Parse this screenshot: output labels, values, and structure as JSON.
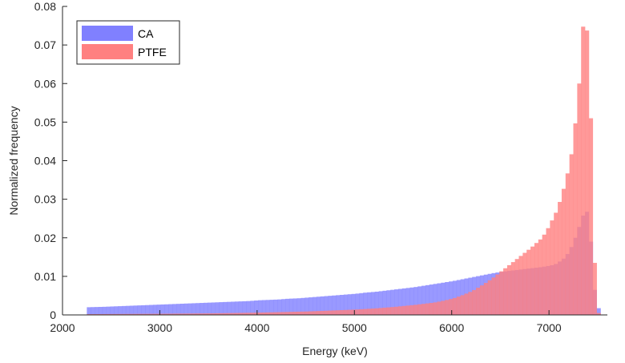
{
  "chart_data": {
    "type": "bar",
    "subtype": "overlaid-histogram",
    "title": "",
    "xlabel": "Energy (keV)",
    "ylabel": "Normalized frequency",
    "xlim": [
      2000,
      7600
    ],
    "ylim": [
      0,
      0.08
    ],
    "xticks": [
      2000,
      3000,
      4000,
      5000,
      6000,
      7000
    ],
    "xtick_labels": [
      "2000",
      "3000",
      "4000",
      "5000",
      "6000",
      "7000"
    ],
    "yticks": [
      0,
      0.01,
      0.02,
      0.03,
      0.04,
      0.05,
      0.06,
      0.07,
      0.08
    ],
    "ytick_labels": [
      "0",
      "0.01",
      "0.02",
      "0.03",
      "0.04",
      "0.05",
      "0.06",
      "0.07",
      "0.08"
    ],
    "grid": false,
    "legend_position": "top-left",
    "bin_width": 40,
    "series": [
      {
        "name": "CA",
        "color": "#8080ff",
        "opacity": 0.8,
        "bins": [
          [
            2250,
            0.002
          ],
          [
            2400,
            0.0021
          ],
          [
            2500,
            0.0022
          ],
          [
            2600,
            0.0023
          ],
          [
            2700,
            0.0024
          ],
          [
            2800,
            0.0025
          ],
          [
            2900,
            0.0026
          ],
          [
            3000,
            0.0027
          ],
          [
            3100,
            0.0028
          ],
          [
            3200,
            0.0029
          ],
          [
            3300,
            0.003
          ],
          [
            3400,
            0.0031
          ],
          [
            3500,
            0.0032
          ],
          [
            3600,
            0.0033
          ],
          [
            3700,
            0.0034
          ],
          [
            3800,
            0.0035
          ],
          [
            3900,
            0.0036
          ],
          [
            4000,
            0.0038
          ],
          [
            4100,
            0.0039
          ],
          [
            4200,
            0.004
          ],
          [
            4300,
            0.0042
          ],
          [
            4400,
            0.0043
          ],
          [
            4500,
            0.0045
          ],
          [
            4600,
            0.0047
          ],
          [
            4700,
            0.0049
          ],
          [
            4800,
            0.0051
          ],
          [
            4900,
            0.0053
          ],
          [
            5000,
            0.0055
          ],
          [
            5100,
            0.0058
          ],
          [
            5200,
            0.006
          ],
          [
            5300,
            0.0063
          ],
          [
            5400,
            0.0066
          ],
          [
            5500,
            0.0069
          ],
          [
            5600,
            0.0072
          ],
          [
            5700,
            0.0076
          ],
          [
            5800,
            0.008
          ],
          [
            5900,
            0.0084
          ],
          [
            6000,
            0.0088
          ],
          [
            6100,
            0.0093
          ],
          [
            6200,
            0.0098
          ],
          [
            6300,
            0.0103
          ],
          [
            6400,
            0.0108
          ],
          [
            6500,
            0.0112
          ],
          [
            6600,
            0.0115
          ],
          [
            6700,
            0.0118
          ],
          [
            6800,
            0.0121
          ],
          [
            6900,
            0.0124
          ],
          [
            7000,
            0.0128
          ],
          [
            7050,
            0.0132
          ],
          [
            7100,
            0.014
          ],
          [
            7150,
            0.015
          ],
          [
            7200,
            0.017
          ],
          [
            7250,
            0.02
          ],
          [
            7300,
            0.0235
          ],
          [
            7340,
            0.0265
          ],
          [
            7360,
            0.0275
          ],
          [
            7380,
            0.026
          ],
          [
            7400,
            0.022
          ],
          [
            7420,
            0.016
          ],
          [
            7440,
            0.009
          ],
          [
            7460,
            0.004
          ],
          [
            7480,
            0.0015
          ],
          [
            7500,
            0.002
          ],
          [
            7510,
            0.0
          ]
        ]
      },
      {
        "name": "PTFE",
        "color": "#ff8080",
        "opacity": 0.8,
        "bins": [
          [
            2250,
            0.0002
          ],
          [
            3000,
            0.0003
          ],
          [
            3500,
            0.0004
          ],
          [
            4000,
            0.0006
          ],
          [
            4500,
            0.0009
          ],
          [
            5000,
            0.0014
          ],
          [
            5200,
            0.0017
          ],
          [
            5400,
            0.0021
          ],
          [
            5600,
            0.0026
          ],
          [
            5700,
            0.0029
          ],
          [
            5800,
            0.0032
          ],
          [
            5900,
            0.0037
          ],
          [
            6000,
            0.0043
          ],
          [
            6100,
            0.0052
          ],
          [
            6200,
            0.0063
          ],
          [
            6300,
            0.0078
          ],
          [
            6400,
            0.0095
          ],
          [
            6500,
            0.0115
          ],
          [
            6600,
            0.0135
          ],
          [
            6700,
            0.0155
          ],
          [
            6800,
            0.0175
          ],
          [
            6900,
            0.0198
          ],
          [
            6950,
            0.0215
          ],
          [
            7000,
            0.024
          ],
          [
            7050,
            0.0265
          ],
          [
            7100,
            0.03
          ],
          [
            7150,
            0.0345
          ],
          [
            7200,
            0.04
          ],
          [
            7230,
            0.045
          ],
          [
            7260,
            0.052
          ],
          [
            7290,
            0.06
          ],
          [
            7320,
            0.072
          ],
          [
            7340,
            0.0775
          ],
          [
            7360,
            0.0765
          ],
          [
            7380,
            0.071
          ],
          [
            7400,
            0.06
          ],
          [
            7420,
            0.042
          ],
          [
            7440,
            0.02
          ],
          [
            7460,
            0.007
          ],
          [
            7480,
            0.001
          ],
          [
            7500,
            0.0
          ]
        ]
      }
    ],
    "legend": [
      {
        "label": "CA",
        "color": "#8080ff"
      },
      {
        "label": "PTFE",
        "color": "#ff8080"
      }
    ]
  }
}
